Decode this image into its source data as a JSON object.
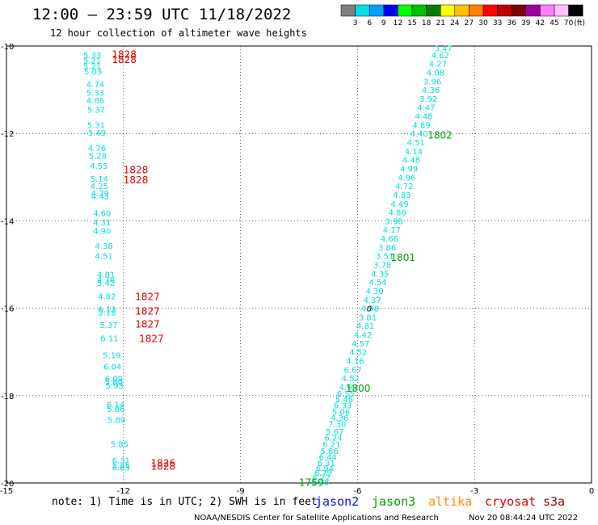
{
  "header": {
    "title": "12:00 – 23:59 UTC 11/18/2022",
    "subtitle": "12 hour collection of altimeter wave heights"
  },
  "colorbar": {
    "colors": [
      "#808080",
      "#00e0e0",
      "#00a0ff",
      "#0000ff",
      "#00ff00",
      "#00c000",
      "#008000",
      "#ffff00",
      "#ffc000",
      "#ff8000",
      "#ff0000",
      "#c00000",
      "#800000",
      "#a000a0",
      "#ff80ff",
      "#ffc0ff",
      "#000000"
    ],
    "labels": [
      "3",
      "6",
      "9",
      "12",
      "15",
      "18",
      "21",
      "24",
      "27",
      "30",
      "33",
      "36",
      "39",
      "42",
      "45",
      "70"
    ],
    "unit": "(ft)"
  },
  "chart_data": {
    "type": "scatter",
    "xlim": [
      -15,
      0
    ],
    "ylim": [
      -20,
      -10
    ],
    "x_ticks": [
      -15,
      -12,
      -9,
      -6,
      -3,
      0
    ],
    "y_ticks": [
      -10,
      -12,
      -14,
      -16,
      -18,
      -20
    ],
    "grid": "dotted",
    "series": [
      {
        "name": "cryosat",
        "color": "#00dede",
        "points": [
          {
            "x": -12.8,
            "y": -10.2,
            "v": "5.33"
          },
          {
            "x": -12.8,
            "y": -10.32,
            "v": "5.21"
          },
          {
            "x": -12.8,
            "y": -10.45,
            "v": "5.21"
          },
          {
            "x": -12.78,
            "y": -10.57,
            "v": "5.03"
          },
          {
            "x": -12.72,
            "y": -10.87,
            "v": "4.74"
          },
          {
            "x": -12.72,
            "y": -11.06,
            "v": "5.33"
          },
          {
            "x": -12.72,
            "y": -11.24,
            "v": "4.86"
          },
          {
            "x": -12.7,
            "y": -11.45,
            "v": "5.37"
          },
          {
            "x": -12.7,
            "y": -11.8,
            "v": "5.31"
          },
          {
            "x": -12.68,
            "y": -11.98,
            "v": "5.49"
          },
          {
            "x": -12.68,
            "y": -12.33,
            "v": "4.76"
          },
          {
            "x": -12.66,
            "y": -12.5,
            "v": "5.28"
          },
          {
            "x": -12.63,
            "y": -12.74,
            "v": "4.55"
          },
          {
            "x": -12.62,
            "y": -13.03,
            "v": "5.14"
          },
          {
            "x": -12.62,
            "y": -13.2,
            "v": "4.25"
          },
          {
            "x": -12.6,
            "y": -13.36,
            "v": "4.79"
          },
          {
            "x": -12.6,
            "y": -13.43,
            "v": "4.43"
          },
          {
            "x": -12.55,
            "y": -13.82,
            "v": "4.60"
          },
          {
            "x": -12.55,
            "y": -14.03,
            "v": "4.31"
          },
          {
            "x": -12.55,
            "y": -14.22,
            "v": "4.90"
          },
          {
            "x": -12.5,
            "y": -14.57,
            "v": "4.38"
          },
          {
            "x": -12.5,
            "y": -14.8,
            "v": "4.51"
          },
          {
            "x": -12.45,
            "y": -15.22,
            "v": "4.81"
          },
          {
            "x": -12.45,
            "y": -15.33,
            "v": "4.78"
          },
          {
            "x": -12.45,
            "y": -15.42,
            "v": "5.42"
          },
          {
            "x": -12.42,
            "y": -15.72,
            "v": "4.82"
          },
          {
            "x": -12.42,
            "y": -16.02,
            "v": "6.13"
          },
          {
            "x": -12.42,
            "y": -16.09,
            "v": "5.18"
          },
          {
            "x": -12.38,
            "y": -16.38,
            "v": "5.37"
          },
          {
            "x": -12.36,
            "y": -16.68,
            "v": "6.11"
          },
          {
            "x": -12.3,
            "y": -17.07,
            "v": "5.19"
          },
          {
            "x": -12.28,
            "y": -17.33,
            "v": "6.04"
          },
          {
            "x": -12.25,
            "y": -17.61,
            "v": "6.09"
          },
          {
            "x": -12.25,
            "y": -17.68,
            "v": "5.80"
          },
          {
            "x": -12.23,
            "y": -17.76,
            "v": "5.93"
          },
          {
            "x": -12.2,
            "y": -18.2,
            "v": "6.14"
          },
          {
            "x": -12.2,
            "y": -18.3,
            "v": "5.86"
          },
          {
            "x": -12.18,
            "y": -18.55,
            "v": "5.89"
          },
          {
            "x": -12.1,
            "y": -19.1,
            "v": "5.85"
          },
          {
            "x": -12.06,
            "y": -19.47,
            "v": "6.31"
          },
          {
            "x": -12.06,
            "y": -19.58,
            "v": "5.85"
          },
          {
            "x": -12.06,
            "y": -19.64,
            "v": "6.65"
          }
        ],
        "time_labels": [
          {
            "x": -12.3,
            "y": -10.18,
            "text": "1828"
          },
          {
            "x": -12.3,
            "y": -10.3,
            "text": "1828"
          },
          {
            "x": -12.0,
            "y": -12.82,
            "text": "1828"
          },
          {
            "x": -12.0,
            "y": -13.05,
            "text": "1828"
          },
          {
            "x": -11.7,
            "y": -15.72,
            "text": "1827"
          },
          {
            "x": -11.7,
            "y": -16.05,
            "text": "1827"
          },
          {
            "x": -11.7,
            "y": -16.35,
            "text": "1827"
          },
          {
            "x": -11.6,
            "y": -16.68,
            "text": "1827"
          },
          {
            "x": -11.3,
            "y": -19.53,
            "text": "1826"
          },
          {
            "x": -11.3,
            "y": -19.6,
            "text": "1828"
          }
        ]
      },
      {
        "name": "jason3",
        "color": "#00dede",
        "points": [
          {
            "x": -3.8,
            "y": -10.05,
            "v": "3.47"
          },
          {
            "x": -3.88,
            "y": -10.2,
            "v": "4.62"
          },
          {
            "x": -3.94,
            "y": -10.4,
            "v": "4.27"
          },
          {
            "x": -4.0,
            "y": -10.6,
            "v": "4.08"
          },
          {
            "x": -4.08,
            "y": -10.8,
            "v": "3.96"
          },
          {
            "x": -4.12,
            "y": -11.0,
            "v": "4.36"
          },
          {
            "x": -4.18,
            "y": -11.2,
            "v": "3.92"
          },
          {
            "x": -4.24,
            "y": -11.4,
            "v": "4.47"
          },
          {
            "x": -4.3,
            "y": -11.6,
            "v": "4.48"
          },
          {
            "x": -4.36,
            "y": -11.8,
            "v": "4.89"
          },
          {
            "x": -4.42,
            "y": -12.0,
            "v": "4.40"
          },
          {
            "x": -4.5,
            "y": -12.2,
            "v": "4.51"
          },
          {
            "x": -4.56,
            "y": -12.4,
            "v": "4.14"
          },
          {
            "x": -4.62,
            "y": -12.6,
            "v": "4.48"
          },
          {
            "x": -4.68,
            "y": -12.8,
            "v": "4.99"
          },
          {
            "x": -4.74,
            "y": -13.0,
            "v": "4.96"
          },
          {
            "x": -4.8,
            "y": -13.2,
            "v": "4.72"
          },
          {
            "x": -4.86,
            "y": -13.4,
            "v": "4.83"
          },
          {
            "x": -4.92,
            "y": -13.6,
            "v": "4.49"
          },
          {
            "x": -4.98,
            "y": -13.8,
            "v": "4.86"
          },
          {
            "x": -5.06,
            "y": -14.0,
            "v": "3.98"
          },
          {
            "x": -5.12,
            "y": -14.2,
            "v": "4.17"
          },
          {
            "x": -5.18,
            "y": -14.4,
            "v": "4.66"
          },
          {
            "x": -5.24,
            "y": -14.6,
            "v": "3.86"
          },
          {
            "x": -5.3,
            "y": -14.8,
            "v": "3.51"
          },
          {
            "x": -5.36,
            "y": -15.0,
            "v": "3.78"
          },
          {
            "x": -5.42,
            "y": -15.2,
            "v": "4.35"
          },
          {
            "x": -5.48,
            "y": -15.4,
            "v": "4.54"
          },
          {
            "x": -5.56,
            "y": -15.6,
            "v": "4.30"
          },
          {
            "x": -5.62,
            "y": -15.8,
            "v": "4.37"
          },
          {
            "x": -5.68,
            "y": -16.0,
            "v": "4.98"
          },
          {
            "x": -5.74,
            "y": -16.2,
            "v": "3.81"
          },
          {
            "x": -5.8,
            "y": -16.4,
            "v": "4.81"
          },
          {
            "x": -5.86,
            "y": -16.6,
            "v": "4.42"
          },
          {
            "x": -5.92,
            "y": -16.8,
            "v": "4.57"
          },
          {
            "x": -5.98,
            "y": -17.0,
            "v": "4.52"
          },
          {
            "x": -6.06,
            "y": -17.2,
            "v": "4.16"
          },
          {
            "x": -6.12,
            "y": -17.4,
            "v": "6.67"
          },
          {
            "x": -6.18,
            "y": -17.6,
            "v": "4.52"
          },
          {
            "x": -6.24,
            "y": -17.8,
            "v": "4.99"
          },
          {
            "x": -6.3,
            "y": -17.95,
            "v": "6.55"
          },
          {
            "x": -6.34,
            "y": -18.08,
            "v": "5.46"
          },
          {
            "x": -6.38,
            "y": -18.22,
            "v": "6.33"
          },
          {
            "x": -6.42,
            "y": -18.36,
            "v": "5.06"
          },
          {
            "x": -6.46,
            "y": -18.5,
            "v": "4.36"
          },
          {
            "x": -6.52,
            "y": -18.64,
            "v": "7.30"
          },
          {
            "x": -6.58,
            "y": -18.82,
            "v": "5.67"
          },
          {
            "x": -6.62,
            "y": -18.96,
            "v": "6.24"
          },
          {
            "x": -6.66,
            "y": -19.1,
            "v": "6.21"
          },
          {
            "x": -6.72,
            "y": -19.26,
            "v": "5.86"
          },
          {
            "x": -6.76,
            "y": -19.4,
            "v": "6.44"
          },
          {
            "x": -6.8,
            "y": -19.54,
            "v": "6.31"
          },
          {
            "x": -6.84,
            "y": -19.66,
            "v": "6.94"
          },
          {
            "x": -6.88,
            "y": -19.76,
            "v": "6.79"
          },
          {
            "x": -6.92,
            "y": -19.86,
            "v": "6.22"
          },
          {
            "x": -6.96,
            "y": -19.97,
            "v": "6.08"
          }
        ],
        "time_labels": [
          {
            "x": -4.2,
            "y": -12.02,
            "text": "1802"
          },
          {
            "x": -5.15,
            "y": -14.82,
            "text": "1801"
          },
          {
            "x": -6.3,
            "y": -17.82,
            "text": "1800"
          },
          {
            "x": -7.5,
            "y": -19.97,
            "text": "1759"
          }
        ]
      }
    ],
    "marker": {
      "x": -5.7,
      "y": -16.0,
      "text": "0"
    }
  },
  "footer": {
    "note": "note: 1) Time is in UTC; 2) SWH is in feet",
    "satellites": [
      {
        "name": "jason2",
        "color": "#1010e0"
      },
      {
        "name": "jason3",
        "color": "#00a000"
      },
      {
        "name": "altika",
        "color": "#ff8c00"
      },
      {
        "name": "cryosat",
        "color": "#e00000"
      },
      {
        "name": "s3a",
        "color": "#900000"
      }
    ],
    "credit": "NOAA/NESDIS Center for Satellite Applications and Research",
    "timestamp": "Nov 20 08:44:24 UTC 2022"
  }
}
